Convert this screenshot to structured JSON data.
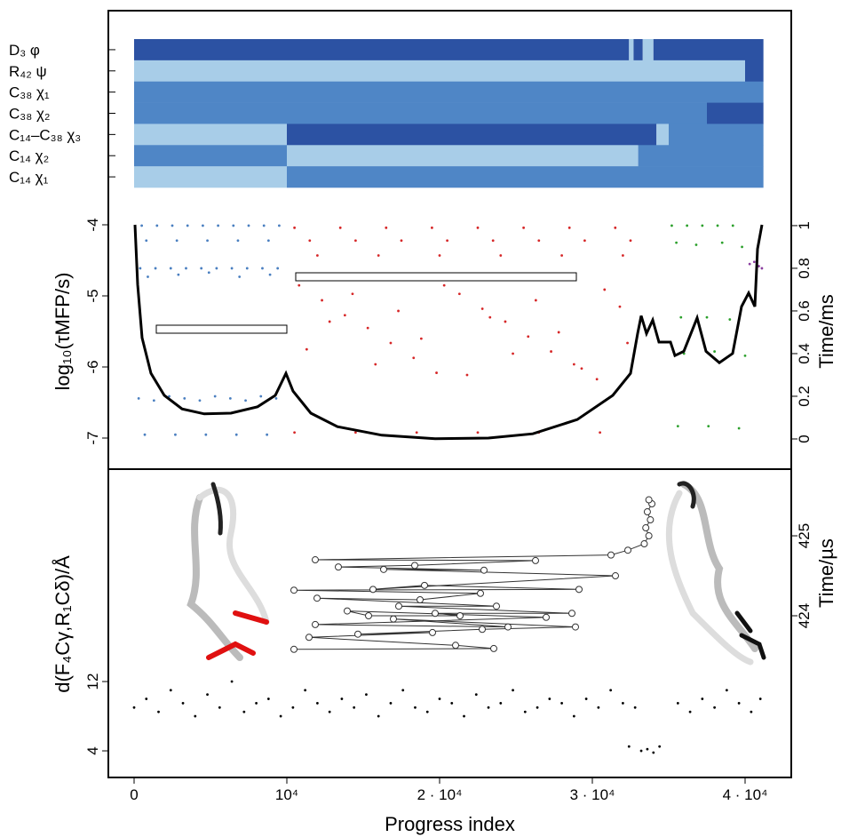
{
  "chart_data": [
    {
      "type": "heatmap",
      "xlim": [
        -1686,
        43023
      ],
      "level_colors": [
        "#a8cde8",
        "#4f86c6",
        "#2c52a3"
      ],
      "rows": [
        {
          "label": "D₃ φ",
          "segments": [
            {
              "start": 0,
              "end": 32400,
              "level": 3
            },
            {
              "start": 32400,
              "end": 32700,
              "level": 1
            },
            {
              "start": 32700,
              "end": 33300,
              "level": 3
            },
            {
              "start": 33300,
              "end": 34000,
              "level": 1
            },
            {
              "start": 34000,
              "end": 41200,
              "level": 3
            }
          ]
        },
        {
          "label": "R₄₂ ψ",
          "segments": [
            {
              "start": 0,
              "end": 40000,
              "level": 1
            },
            {
              "start": 40000,
              "end": 41200,
              "level": 3
            }
          ]
        },
        {
          "label": "C₃₈ χ₁",
          "segments": [
            {
              "start": 0,
              "end": 41200,
              "level": 2
            }
          ]
        },
        {
          "label": "C₃₈ χ₂",
          "segments": [
            {
              "start": 0,
              "end": 37500,
              "level": 2
            },
            {
              "start": 37500,
              "end": 41200,
              "level": 3
            }
          ]
        },
        {
          "label": "C₁₄–C₃₈ χ₃",
          "segments": [
            {
              "start": 0,
              "end": 10000,
              "level": 1
            },
            {
              "start": 10000,
              "end": 34200,
              "level": 3
            },
            {
              "start": 34200,
              "end": 35000,
              "level": 1
            },
            {
              "start": 35000,
              "end": 41200,
              "level": 2
            }
          ]
        },
        {
          "label": "C₁₄ χ₂",
          "segments": [
            {
              "start": 0,
              "end": 10000,
              "level": 2
            },
            {
              "start": 10000,
              "end": 33000,
              "level": 1
            },
            {
              "start": 33000,
              "end": 41200,
              "level": 2
            }
          ]
        },
        {
          "label": "C₁₄ χ₁",
          "segments": [
            {
              "start": 0,
              "end": 10000,
              "level": 1
            },
            {
              "start": 10000,
              "end": 41200,
              "level": 2
            }
          ]
        }
      ]
    },
    {
      "type": "scatter",
      "xlim": [
        -1686,
        43023
      ],
      "ylabel": "log₁₀(τMFP/s)",
      "y2label": "Time/ms",
      "ylim": [
        -7.3125,
        -3.6875
      ],
      "yticks": [
        -4,
        -5,
        -6,
        -7
      ],
      "y2lim": [
        -0.1,
        1.108
      ],
      "y2ticks": [
        0,
        0.2,
        0.4,
        0.6,
        0.8,
        1
      ],
      "series": [
        {
          "color": "#4a7fc0",
          "axis": "y2",
          "mode": "points",
          "x": [
            500,
            1500,
            2500,
            3500,
            4500,
            5500,
            6500,
            7500,
            8500,
            9500,
            800,
            2800,
            4800,
            6800,
            8800,
            400,
            1400,
            2400,
            3400,
            4400,
            5400,
            6400,
            7400,
            8400,
            9400,
            900,
            2900,
            4900,
            6900,
            8900,
            300,
            1300,
            2300,
            3300,
            4300,
            5300,
            6300,
            7300,
            8300,
            9300,
            700,
            2700,
            4700,
            6700,
            8700
          ],
          "values": [
            1.0,
            1.0,
            1.0,
            1.0,
            1.0,
            1.0,
            1.0,
            1.0,
            1.0,
            1.0,
            0.93,
            0.93,
            0.93,
            0.93,
            0.93,
            0.8,
            0.8,
            0.8,
            0.8,
            0.8,
            0.8,
            0.8,
            0.8,
            0.8,
            0.8,
            0.76,
            0.77,
            0.78,
            0.76,
            0.77,
            0.19,
            0.18,
            0.2,
            0.19,
            0.18,
            0.2,
            0.19,
            0.18,
            0.2,
            0.19,
            0.02,
            0.02,
            0.02,
            0.02,
            0.02
          ]
        },
        {
          "color": "#d62728",
          "axis": "y2",
          "mode": "points",
          "x": [
            10500,
            13500,
            16500,
            19500,
            22500,
            25500,
            28500,
            31500,
            11500,
            14500,
            17500,
            20500,
            23500,
            26500,
            29500,
            32500,
            12000,
            16000,
            20000,
            24000,
            28000,
            32000,
            10800,
            12300,
            13800,
            15300,
            16800,
            18300,
            19800,
            21300,
            22800,
            24300,
            25800,
            27300,
            28800,
            30300,
            31800,
            11300,
            12800,
            14300,
            15800,
            17300,
            18800,
            20300,
            21800,
            23300,
            24800,
            26300,
            27800,
            29300,
            30800,
            32300,
            10500,
            14500,
            18500,
            22500,
            26500,
            30500
          ],
          "values": [
            0.99,
            0.99,
            0.99,
            0.99,
            0.99,
            0.99,
            0.99,
            0.99,
            0.93,
            0.93,
            0.93,
            0.93,
            0.93,
            0.93,
            0.93,
            0.93,
            0.86,
            0.86,
            0.86,
            0.86,
            0.86,
            0.86,
            0.72,
            0.65,
            0.58,
            0.52,
            0.45,
            0.38,
            0.31,
            0.68,
            0.61,
            0.55,
            0.48,
            0.41,
            0.35,
            0.28,
            0.62,
            0.42,
            0.55,
            0.68,
            0.35,
            0.6,
            0.47,
            0.72,
            0.3,
            0.57,
            0.4,
            0.65,
            0.5,
            0.33,
            0.7,
            0.45,
            0.03,
            0.03,
            0.03,
            0.03,
            0.03,
            0.03
          ]
        },
        {
          "color": "#2ca02c",
          "axis": "y2",
          "mode": "points",
          "x": [
            35200,
            36200,
            37200,
            38200,
            39200,
            35500,
            36800,
            38500,
            39800,
            35800,
            37500,
            39000,
            36000,
            38000,
            40000,
            35600,
            37600,
            39600
          ],
          "values": [
            1.0,
            1.0,
            1.0,
            1.0,
            1.0,
            0.92,
            0.91,
            0.92,
            0.9,
            0.57,
            0.57,
            0.56,
            0.4,
            0.41,
            0.39,
            0.06,
            0.06,
            0.05
          ]
        },
        {
          "color": "#8b3fa0",
          "axis": "y2",
          "mode": "points",
          "x": [
            40300,
            40600,
            40900,
            41100
          ],
          "values": [
            0.82,
            0.83,
            0.81,
            0.8
          ]
        },
        {
          "color": "#000000",
          "mode": "line",
          "x": [
            58,
            233,
            523,
            1105,
            1977,
            3140,
            4593,
            6337,
            8081,
            9244,
            9942,
            10407,
            11570,
            13314,
            16221,
            19709,
            23198,
            26105,
            29012,
            31337,
            32500,
            32965,
            33198,
            33547,
            33953,
            34360,
            35116,
            35407,
            35988,
            36860,
            37442,
            38314,
            39186,
            39767,
            40233,
            40640,
            40814,
            41105
          ],
          "values": [
            -4.0,
            -4.84,
            -5.59,
            -6.09,
            -6.4,
            -6.59,
            -6.66,
            -6.65,
            -6.56,
            -6.4,
            -6.09,
            -6.34,
            -6.65,
            -6.84,
            -6.96,
            -7.01,
            -7.0,
            -6.94,
            -6.74,
            -6.4,
            -6.09,
            -5.53,
            -5.28,
            -5.53,
            -5.34,
            -5.65,
            -5.65,
            -5.84,
            -5.78,
            -5.31,
            -5.78,
            -5.94,
            -5.81,
            -5.15,
            -4.96,
            -5.15,
            -4.34,
            -4.0
          ]
        }
      ]
    },
    {
      "type": "scatter",
      "xlim": [
        -1686,
        43023
      ],
      "xticks": [
        0,
        {
          "value": 10000,
          "label": "10⁴"
        },
        {
          "value": 20000,
          "label": "2 · 10⁴"
        },
        {
          "value": 30000,
          "label": "3 · 10⁴"
        },
        {
          "value": 40000,
          "label": "4 · 10⁴"
        }
      ],
      "xlabel": "Progress index",
      "ylabel": "d(F₄Cγ,R₁Cδ)/Å",
      "y2label": "Time/µs",
      "ylim": [
        1.44,
        35.8
      ],
      "yticks": [
        4,
        12
      ],
      "y2lim": [
        422.033,
        425.756
      ],
      "y2ticks": [
        424,
        425
      ],
      "series": [
        {
          "color": "#000000",
          "mode": "points",
          "x": [
            0,
            800,
            1600,
            2400,
            3200,
            4000,
            4800,
            5600,
            6400,
            7200,
            8000,
            8800,
            9600,
            10400,
            11200,
            12000,
            12800,
            13600,
            14400,
            15200,
            16000,
            16800,
            17600,
            18400,
            19200,
            20000,
            20800,
            21600,
            22400,
            23200,
            24000,
            24800,
            25600,
            26400,
            27200,
            28000,
            28800,
            29600,
            30400,
            31200,
            32000,
            32400,
            32800,
            33200,
            33600,
            34000,
            34400,
            35600,
            36400,
            37200,
            38000,
            38800,
            39600,
            40400,
            41000
          ],
          "values": [
            9,
            10,
            8.5,
            11,
            9.5,
            8,
            10.5,
            9,
            12,
            8.5,
            9.5,
            10,
            8,
            9,
            11,
            9.5,
            8.5,
            10,
            9,
            10.5,
            8,
            9.5,
            11,
            9,
            8.5,
            10,
            9.5,
            8,
            10.5,
            9,
            9.5,
            11,
            8.5,
            9,
            10,
            9.5,
            8,
            10,
            9,
            11,
            9.5,
            4.5,
            9,
            4,
            4.2,
            3.8,
            4.5,
            9.5,
            8.5,
            10,
            9,
            11,
            9.5,
            8.5,
            10
          ]
        },
        {
          "color": "#333333",
          "axis": "y2",
          "mode": "line-markers",
          "x": [
            10465,
            23547,
            21047,
            11453,
            19535,
            14651,
            22791,
            28895,
            16977,
            24477,
            11860,
            26977,
            13953,
            15349,
            21337,
            19709,
            28663,
            17326,
            23721,
            11977,
            18721,
            22674,
            10465,
            29128,
            19012,
            15640,
            31512,
            16337,
            22907,
            13372,
            18372,
            26279,
            11860,
            31221,
            32326,
            33400,
            33700,
            33500,
            33800,
            33600,
            33900,
            33700
          ],
          "values": [
            423.58,
            423.59,
            423.63,
            423.73,
            423.79,
            423.77,
            423.83,
            423.86,
            423.96,
            423.86,
            423.89,
            423.98,
            424.06,
            424.0,
            424.0,
            424.03,
            424.03,
            424.12,
            424.12,
            424.22,
            424.2,
            424.28,
            424.32,
            424.33,
            424.38,
            424.33,
            424.5,
            424.58,
            424.57,
            424.61,
            424.63,
            424.69,
            424.7,
            424.76,
            424.82,
            424.9,
            425.0,
            425.1,
            425.2,
            425.3,
            425.4,
            425.45
          ]
        }
      ]
    }
  ]
}
